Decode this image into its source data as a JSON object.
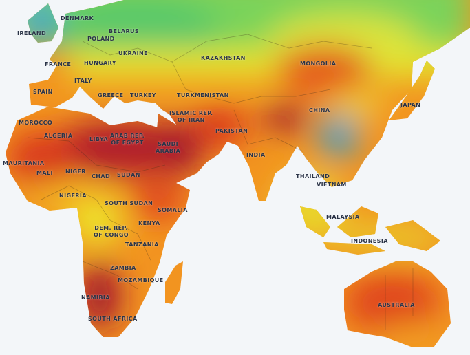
{
  "map": {
    "theme": "solar irradiance heatmap",
    "colors": {
      "ocean": "#f3f6f9",
      "low": "#3a9fcf",
      "mid_low": "#6fd05a",
      "mid": "#ece52a",
      "mid_high": "#f39a1e",
      "high": "#e0461c",
      "very_high": "#a3122e",
      "borders": "#3a2a1a"
    },
    "labels": [
      "DENMARK",
      "IRELAND",
      "BELARUS",
      "POLAND",
      "UKRAINE",
      "FRANCE",
      "HUNGARY",
      "KAZAKHSTAN",
      "MONGOLIA",
      "ITALY",
      "SPAIN",
      "GREECE",
      "TURKEY",
      "TURKMENISTAN",
      "JAPAN",
      "ISLAMIC REP.\nOF IRAN",
      "CHINA",
      "MOROCCO",
      "ALGERIA",
      "LIBYA",
      "ARAB REP.\nOF EGYPT",
      "SAUDI\nARABIA",
      "PAKISTAN",
      "INDIA",
      "MAURITANIA",
      "MALI",
      "NIGER",
      "CHAD",
      "SUDAN",
      "THAILAND",
      "VIETNAM",
      "NIGERIA",
      "SOUTH SUDAN",
      "SOMALIA",
      "MALAYSIA",
      "KENYA",
      "DEM. REP.\nOF CONGO",
      "TANZANIA",
      "INDONESIA",
      "ZAMBIA",
      "MOZAMBIQUE",
      "NAMIBIA",
      "AUSTRALIA",
      "SOUTH AFRICA"
    ]
  }
}
